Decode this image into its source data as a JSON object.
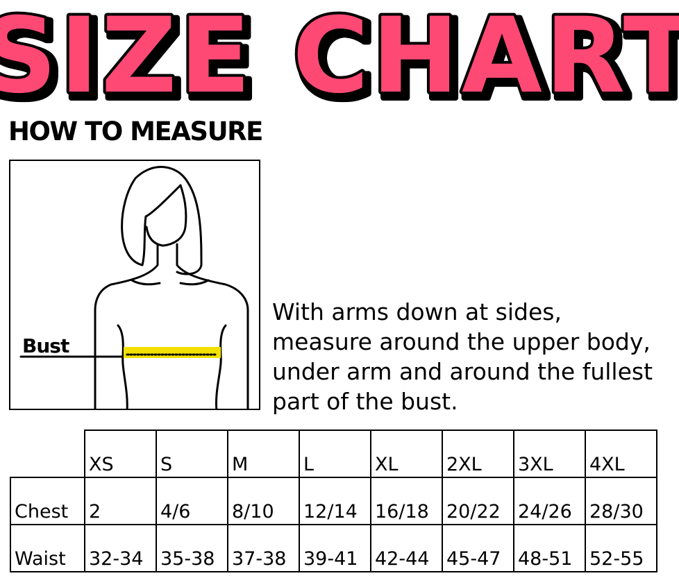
{
  "title": "SIZE CHART",
  "colors": {
    "title_fill": "#ff4a75",
    "title_outline": "#000000",
    "tape": "#f2e100"
  },
  "how_to_measure": {
    "heading": "HOW TO MEASURE",
    "figure_label": "Bust",
    "instructions": [
      "With arms down at sides,",
      "measure around the upper body,",
      "under arm and around the fullest",
      "part of the bust."
    ]
  },
  "size_table": {
    "columns": [
      "XS",
      "S",
      "M",
      "L",
      "XL",
      "2XL",
      "3XL",
      "4XL"
    ],
    "rows": [
      {
        "label": "Chest",
        "values": [
          "2",
          "4/6",
          "8/10",
          "12/14",
          "16/18",
          "20/22",
          "24/26",
          "28/30"
        ]
      },
      {
        "label": "Waist",
        "values": [
          "32-34",
          "35-38",
          "37-38",
          "39-41",
          "42-44",
          "45-47",
          "48-51",
          "52-55"
        ]
      }
    ]
  }
}
